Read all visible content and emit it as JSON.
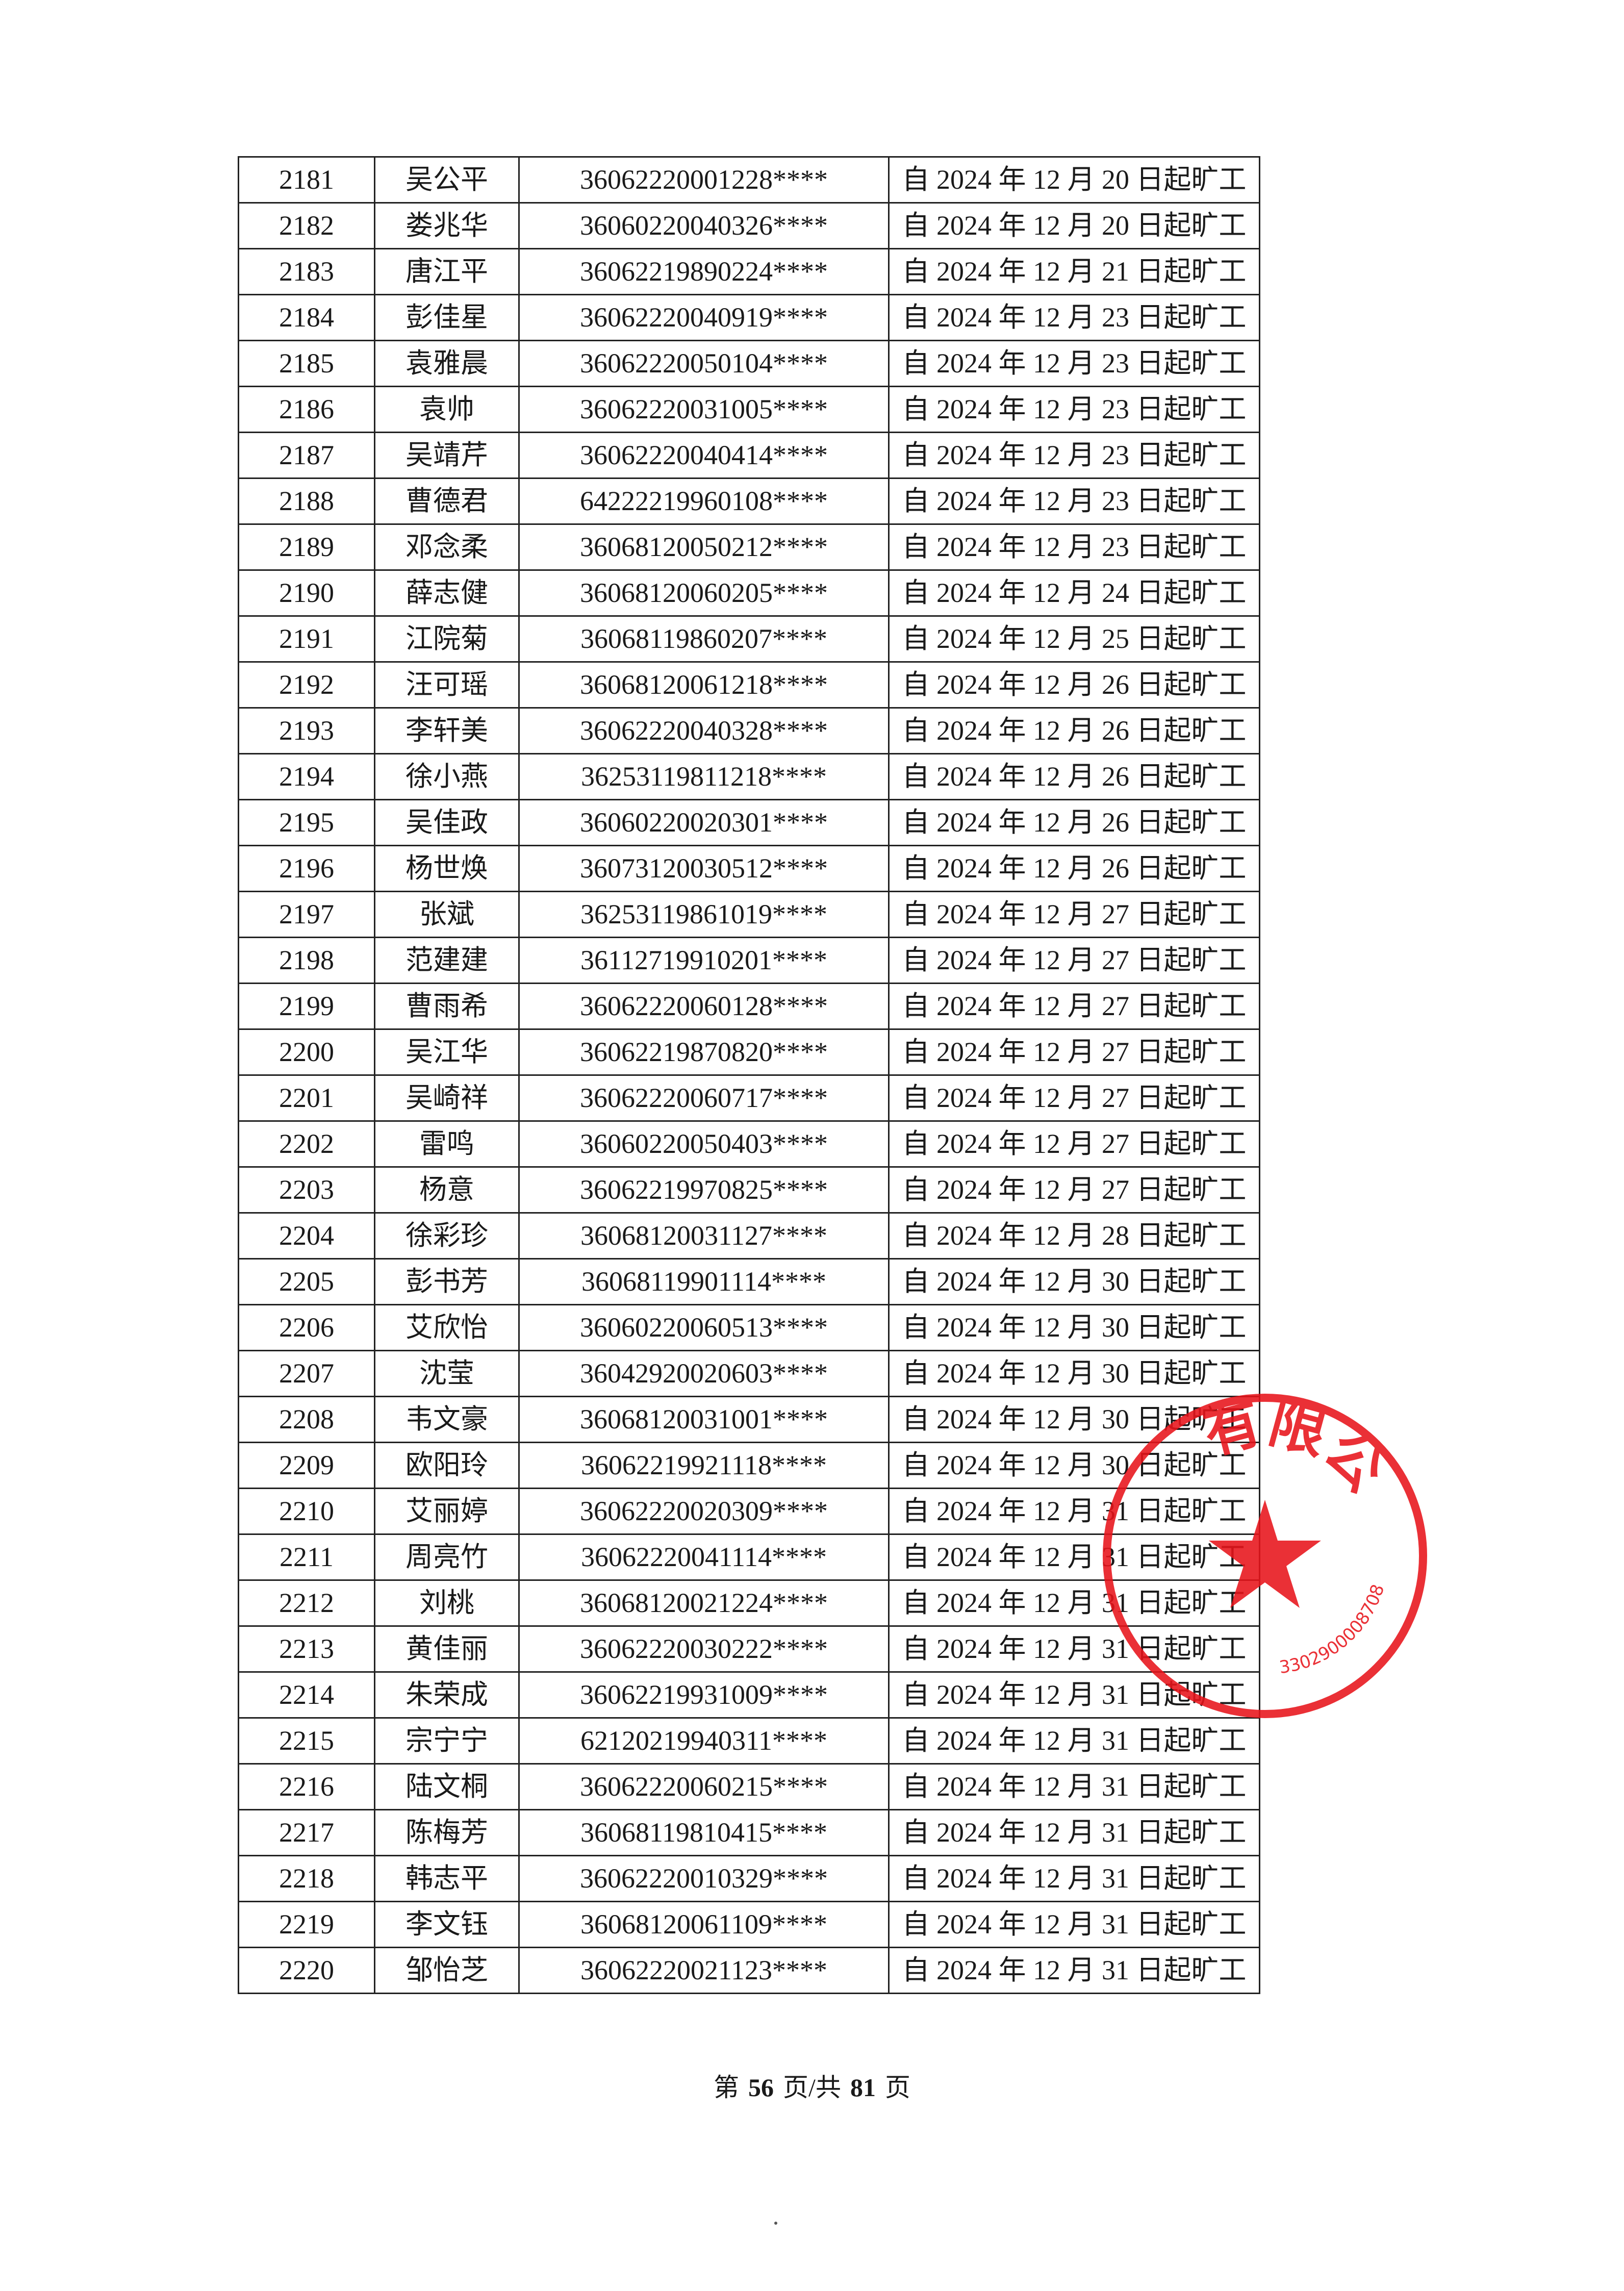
{
  "rows": [
    [
      "2181",
      "吴公平",
      "36062220001228****",
      "自 2024 年 12 月 20 日起旷工"
    ],
    [
      "2182",
      "娄兆华",
      "36060220040326****",
      "自 2024 年 12 月 20 日起旷工"
    ],
    [
      "2183",
      "唐江平",
      "36062219890224****",
      "自 2024 年 12 月 21 日起旷工"
    ],
    [
      "2184",
      "彭佳星",
      "36062220040919****",
      "自 2024 年 12 月 23 日起旷工"
    ],
    [
      "2185",
      "袁雅晨",
      "36062220050104****",
      "自 2024 年 12 月 23 日起旷工"
    ],
    [
      "2186",
      "袁帅",
      "36062220031005****",
      "自 2024 年 12 月 23 日起旷工"
    ],
    [
      "2187",
      "吴靖芹",
      "36062220040414****",
      "自 2024 年 12 月 23 日起旷工"
    ],
    [
      "2188",
      "曹德君",
      "64222219960108****",
      "自 2024 年 12 月 23 日起旷工"
    ],
    [
      "2189",
      "邓念柔",
      "36068120050212****",
      "自 2024 年 12 月 23 日起旷工"
    ],
    [
      "2190",
      "薛志健",
      "36068120060205****",
      "自 2024 年 12 月 24 日起旷工"
    ],
    [
      "2191",
      "江院菊",
      "36068119860207****",
      "自 2024 年 12 月 25 日起旷工"
    ],
    [
      "2192",
      "汪可瑶",
      "36068120061218****",
      "自 2024 年 12 月 26 日起旷工"
    ],
    [
      "2193",
      "李轩美",
      "36062220040328****",
      "自 2024 年 12 月 26 日起旷工"
    ],
    [
      "2194",
      "徐小燕",
      "36253119811218****",
      "自 2024 年 12 月 26 日起旷工"
    ],
    [
      "2195",
      "吴佳政",
      "36060220020301****",
      "自 2024 年 12 月 26 日起旷工"
    ],
    [
      "2196",
      "杨世焕",
      "36073120030512****",
      "自 2024 年 12 月 26 日起旷工"
    ],
    [
      "2197",
      "张斌",
      "36253119861019****",
      "自 2024 年 12 月 27 日起旷工"
    ],
    [
      "2198",
      "范建建",
      "36112719910201****",
      "自 2024 年 12 月 27 日起旷工"
    ],
    [
      "2199",
      "曹雨希",
      "36062220060128****",
      "自 2024 年 12 月 27 日起旷工"
    ],
    [
      "2200",
      "吴江华",
      "36062219870820****",
      "自 2024 年 12 月 27 日起旷工"
    ],
    [
      "2201",
      "吴崎祥",
      "36062220060717****",
      "自 2024 年 12 月 27 日起旷工"
    ],
    [
      "2202",
      "雷鸣",
      "36060220050403****",
      "自 2024 年 12 月 27 日起旷工"
    ],
    [
      "2203",
      "杨意",
      "36062219970825****",
      "自 2024 年 12 月 27 日起旷工"
    ],
    [
      "2204",
      "徐彩珍",
      "36068120031127****",
      "自 2024 年 12 月 28 日起旷工"
    ],
    [
      "2205",
      "彭书芳",
      "36068119901114****",
      "自 2024 年 12 月 30 日起旷工"
    ],
    [
      "2206",
      "艾欣怡",
      "36060220060513****",
      "自 2024 年 12 月 30 日起旷工"
    ],
    [
      "2207",
      "沈莹",
      "36042920020603****",
      "自 2024 年 12 月 30 日起旷工"
    ],
    [
      "2208",
      "韦文豪",
      "36068120031001****",
      "自 2024 年 12 月 30 日起旷工"
    ],
    [
      "2209",
      "欧阳玲",
      "36062219921118****",
      "自 2024 年 12 月 30 日起旷工"
    ],
    [
      "2210",
      "艾丽婷",
      "36062220020309****",
      "自 2024 年 12 月 31 日起旷工"
    ],
    [
      "2211",
      "周亮竹",
      "36062220041114****",
      "自 2024 年 12 月 31 日起旷工"
    ],
    [
      "2212",
      "刘桃",
      "36068120021224****",
      "自 2024 年 12 月 31 日起旷工"
    ],
    [
      "2213",
      "黄佳丽",
      "36062220030222****",
      "自 2024 年 12 月 31 日起旷工"
    ],
    [
      "2214",
      "朱荣成",
      "36062219931009****",
      "自 2024 年 12 月 31 日起旷工"
    ],
    [
      "2215",
      "宗宁宁",
      "62120219940311****",
      "自 2024 年 12 月 31 日起旷工"
    ],
    [
      "2216",
      "陆文桐",
      "36062220060215****",
      "自 2024 年 12 月 31 日起旷工"
    ],
    [
      "2217",
      "陈梅芳",
      "36068119810415****",
      "自 2024 年 12 月 31 日起旷工"
    ],
    [
      "2218",
      "韩志平",
      "36062220010329****",
      "自 2024 年 12 月 31 日起旷工"
    ],
    [
      "2219",
      "李文钰",
      "36068120061109****",
      "自 2024 年 12 月 31 日起旷工"
    ],
    [
      "2220",
      "邹怡芝",
      "36062220021123****",
      "自 2024 年 12 月 31 日起旷工"
    ]
  ],
  "footer": {
    "prefix": "第",
    "page": "56",
    "middle": "页/共",
    "total": "81",
    "suffix": "页"
  },
  "stamp": {
    "text": "有限公司",
    "number": "3302900008708",
    "color": "#e8141b",
    "icon": "star-icon"
  }
}
